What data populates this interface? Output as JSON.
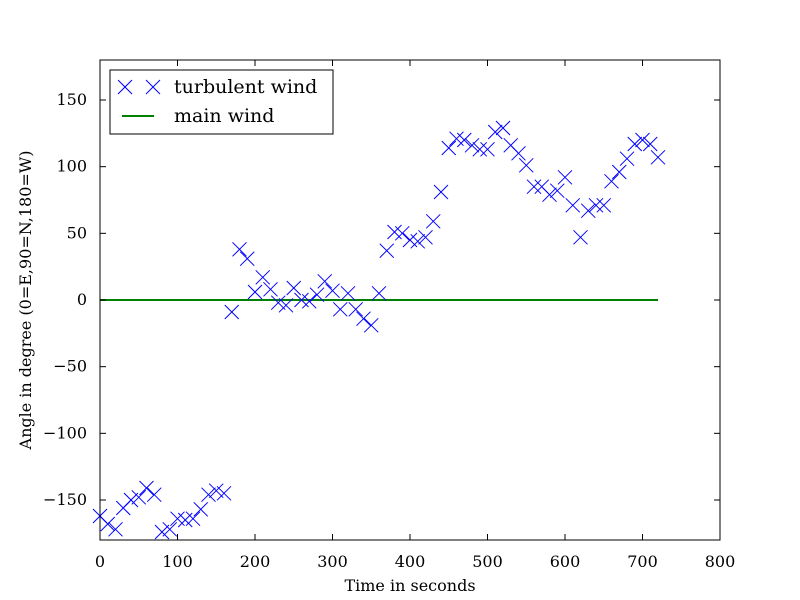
{
  "chart_data": {
    "type": "scatter",
    "title": "",
    "xlabel": "Time in seconds",
    "ylabel": "Angle in degree (0=E,90=N,180=W)",
    "xlim": [
      0,
      800
    ],
    "ylim": [
      -180,
      180
    ],
    "xticks": [
      0,
      100,
      200,
      300,
      400,
      500,
      600,
      700,
      800
    ],
    "yticks": [
      -150,
      -100,
      -50,
      0,
      50,
      100,
      150
    ],
    "xtick_labels": [
      "0",
      "100",
      "200",
      "300",
      "400",
      "500",
      "600",
      "700",
      "800"
    ],
    "ytick_labels": [
      "−150",
      "−100",
      "−50",
      "0",
      "50",
      "100",
      "150"
    ],
    "grid": false,
    "legend_position": "top-left",
    "series": [
      {
        "name": "turbulent wind",
        "marker": "x",
        "color": "#0000ff",
        "x": [
          0,
          10,
          20,
          30,
          40,
          50,
          60,
          70,
          80,
          90,
          100,
          110,
          120,
          130,
          140,
          150,
          160,
          170,
          180,
          190,
          200,
          210,
          220,
          230,
          240,
          250,
          260,
          270,
          280,
          290,
          300,
          310,
          320,
          330,
          340,
          350,
          360,
          370,
          380,
          390,
          400,
          410,
          420,
          430,
          440,
          450,
          460,
          470,
          480,
          490,
          500,
          510,
          520,
          530,
          540,
          550,
          560,
          570,
          580,
          590,
          600,
          610,
          620,
          630,
          640,
          650,
          660,
          670,
          680,
          690,
          700,
          710,
          720
        ],
        "y": [
          -162,
          -168,
          -172,
          -156,
          -150,
          -148,
          -141,
          -146,
          -174,
          -172,
          -164,
          -165,
          -164,
          -157,
          -146,
          -143,
          -145,
          -9,
          38,
          31,
          6,
          17,
          8,
          -2,
          -4,
          9,
          0,
          -1,
          4,
          14,
          7,
          -7,
          5,
          -7,
          -14,
          -19,
          5,
          37,
          51,
          50,
          45,
          44,
          47,
          59,
          81,
          114,
          121,
          120,
          116,
          113,
          113,
          126,
          129,
          116,
          110,
          101,
          85,
          85,
          79,
          82,
          92,
          71,
          47,
          67,
          71,
          71,
          89,
          96,
          106,
          117,
          120,
          117,
          107
        ]
      },
      {
        "name": "main wind",
        "marker": "line",
        "color": "#008000",
        "x": [
          0,
          720
        ],
        "y": [
          0,
          0
        ]
      }
    ]
  }
}
